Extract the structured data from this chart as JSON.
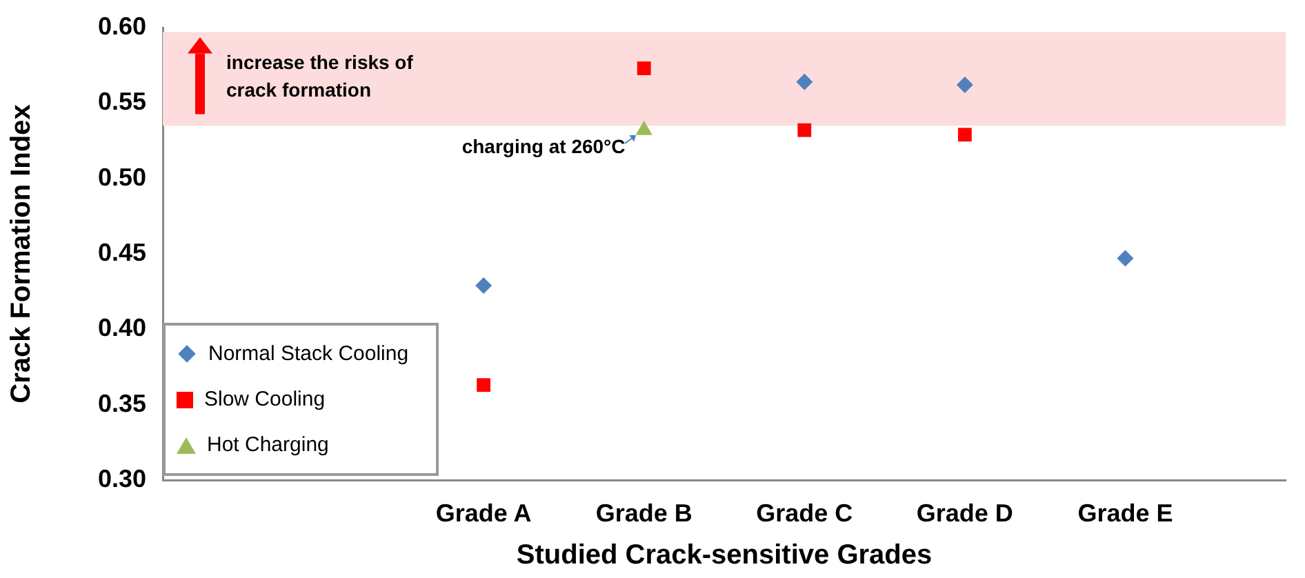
{
  "chart_data": {
    "type": "scatter",
    "xlabel": "Studied Crack-sensitive Grades",
    "ylabel": "Crack Formation Index",
    "categories": [
      null,
      null,
      "Grade A",
      "Grade B",
      "Grade C",
      "Grade D",
      "Grade E",
      null
    ],
    "series": [
      {
        "name": "Normal Stack Cooling",
        "color": "#4f81bd",
        "marker": "diamond",
        "values": [
          null,
          null,
          0.429,
          null,
          0.564,
          0.562,
          0.447,
          null
        ]
      },
      {
        "name": "Slow Cooling",
        "color": "#ff0000",
        "marker": "square",
        "values": [
          null,
          null,
          0.363,
          0.573,
          0.532,
          0.529,
          null,
          null
        ]
      },
      {
        "name": "Hot Charging",
        "color": "#9bbb59",
        "marker": "triangle",
        "values": [
          null,
          null,
          null,
          0.532,
          null,
          null,
          null,
          null
        ]
      }
    ],
    "ylim": [
      0.3,
      0.6
    ],
    "yticks": [
      {
        "value": 0.3,
        "label": "0.30"
      },
      {
        "value": 0.35,
        "label": "0.35"
      },
      {
        "value": 0.4,
        "label": "0.40"
      },
      {
        "value": 0.45,
        "label": "0.45"
      },
      {
        "value": 0.5,
        "label": "0.50"
      },
      {
        "value": 0.55,
        "label": "0.55"
      },
      {
        "value": 0.6,
        "label": "0.60"
      }
    ],
    "bands": [
      {
        "axis": "y",
        "from": 0.535,
        "to": 0.597,
        "label": "increase the risks of crack formation",
        "color": "#fcdcdc"
      }
    ],
    "annotations": [
      {
        "text": "charging at 260°C",
        "x": "Grade B",
        "y": 0.532
      }
    ],
    "grid": false,
    "legend": "bottom left"
  }
}
